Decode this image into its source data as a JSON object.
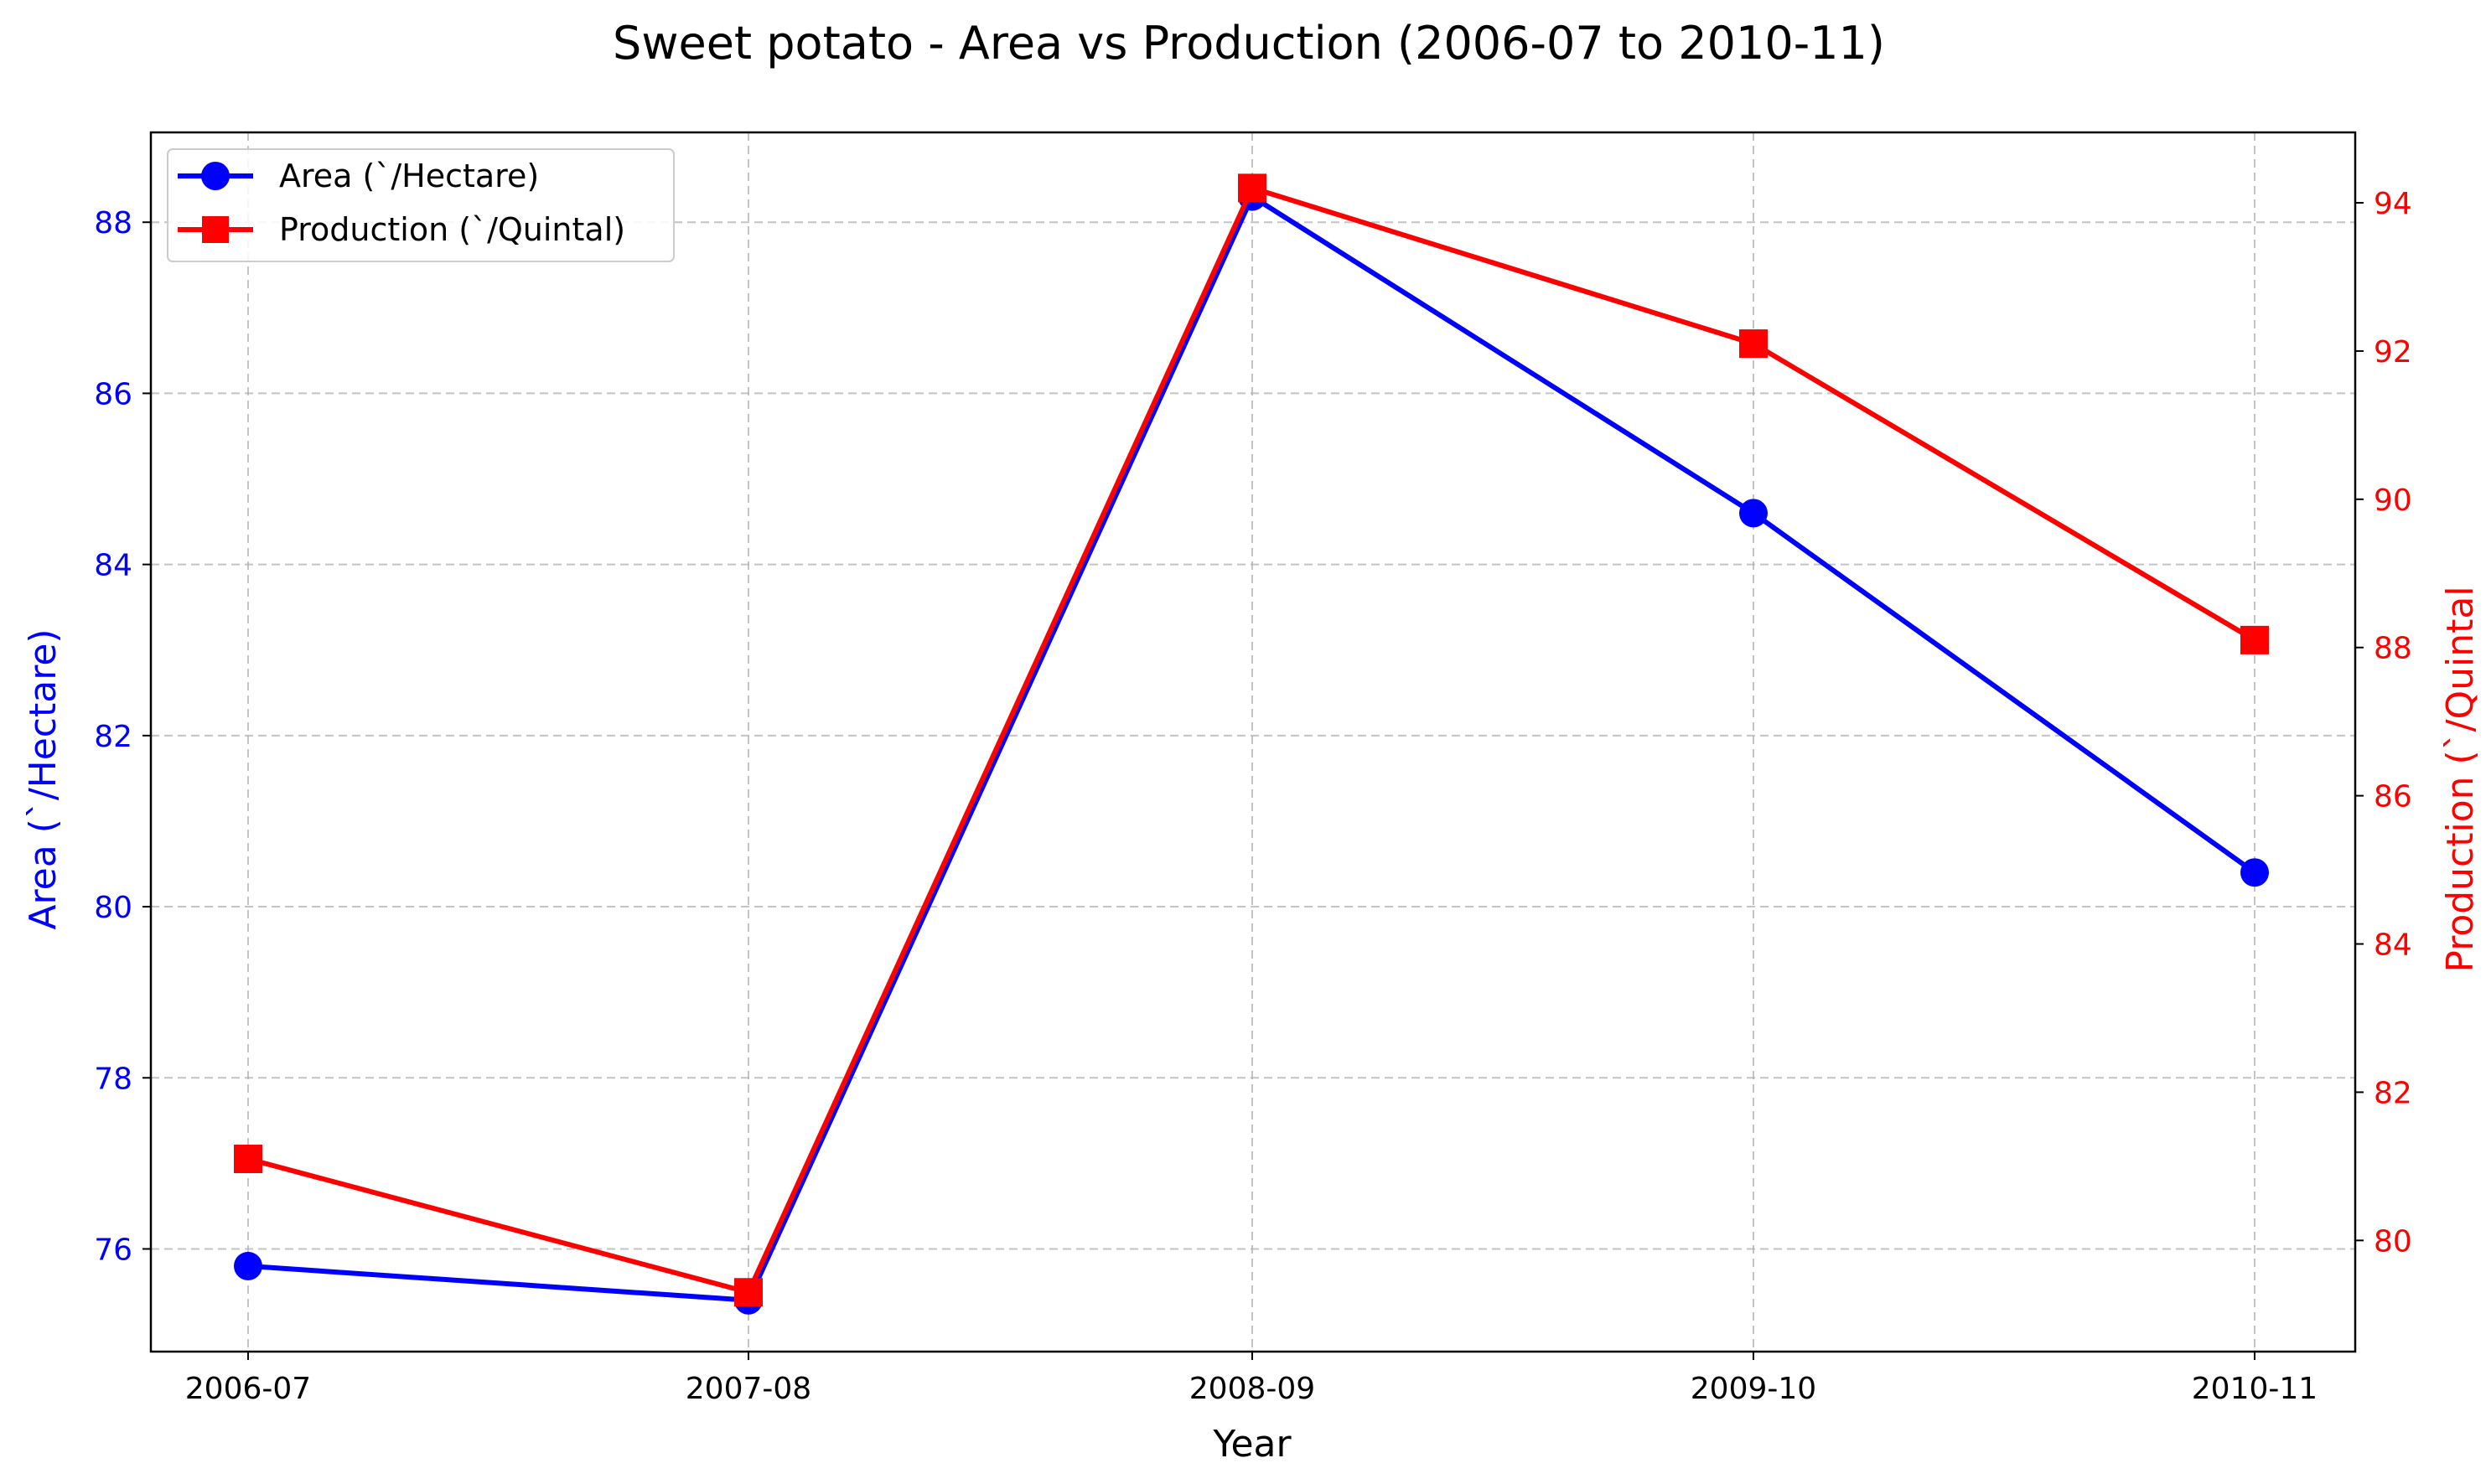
{
  "chart_data": {
    "type": "line",
    "title": "Sweet potato   - Area vs Production (2006-07 to 2010-11)",
    "xlabel": "Year",
    "categories": [
      "2006-07",
      "2007-08",
      "2008-09",
      "2009-10",
      "2010-11"
    ],
    "grid": true,
    "legend_position": "top-left",
    "left_axis": {
      "label": "Area (`/Hectare)",
      "range": [
        74.8,
        89.05
      ],
      "ticks": [
        "76",
        "78",
        "80",
        "82",
        "84",
        "86",
        "88"
      ],
      "tick_values": [
        76,
        78,
        80,
        82,
        84,
        86,
        88
      ],
      "color": "#0000ff"
    },
    "right_axis": {
      "label": "Production (`/Quintal",
      "range": [
        78.5,
        94.95
      ],
      "ticks": [
        "80",
        "82",
        "84",
        "86",
        "88",
        "90",
        "92",
        "94"
      ],
      "tick_values": [
        80,
        82,
        84,
        86,
        88,
        90,
        92,
        94
      ],
      "color": "#ff0000"
    },
    "series": [
      {
        "name": "Area (`/Hectare)",
        "axis": "left",
        "color": "#0000ff",
        "marker": "circle",
        "values": [
          75.8,
          75.4,
          88.3,
          84.6,
          80.4
        ]
      },
      {
        "name": "Production (`/Quintal)",
        "axis": "right",
        "color": "#ff0000",
        "marker": "square",
        "values": [
          81.1,
          79.3,
          94.2,
          92.1,
          88.1
        ]
      }
    ]
  }
}
